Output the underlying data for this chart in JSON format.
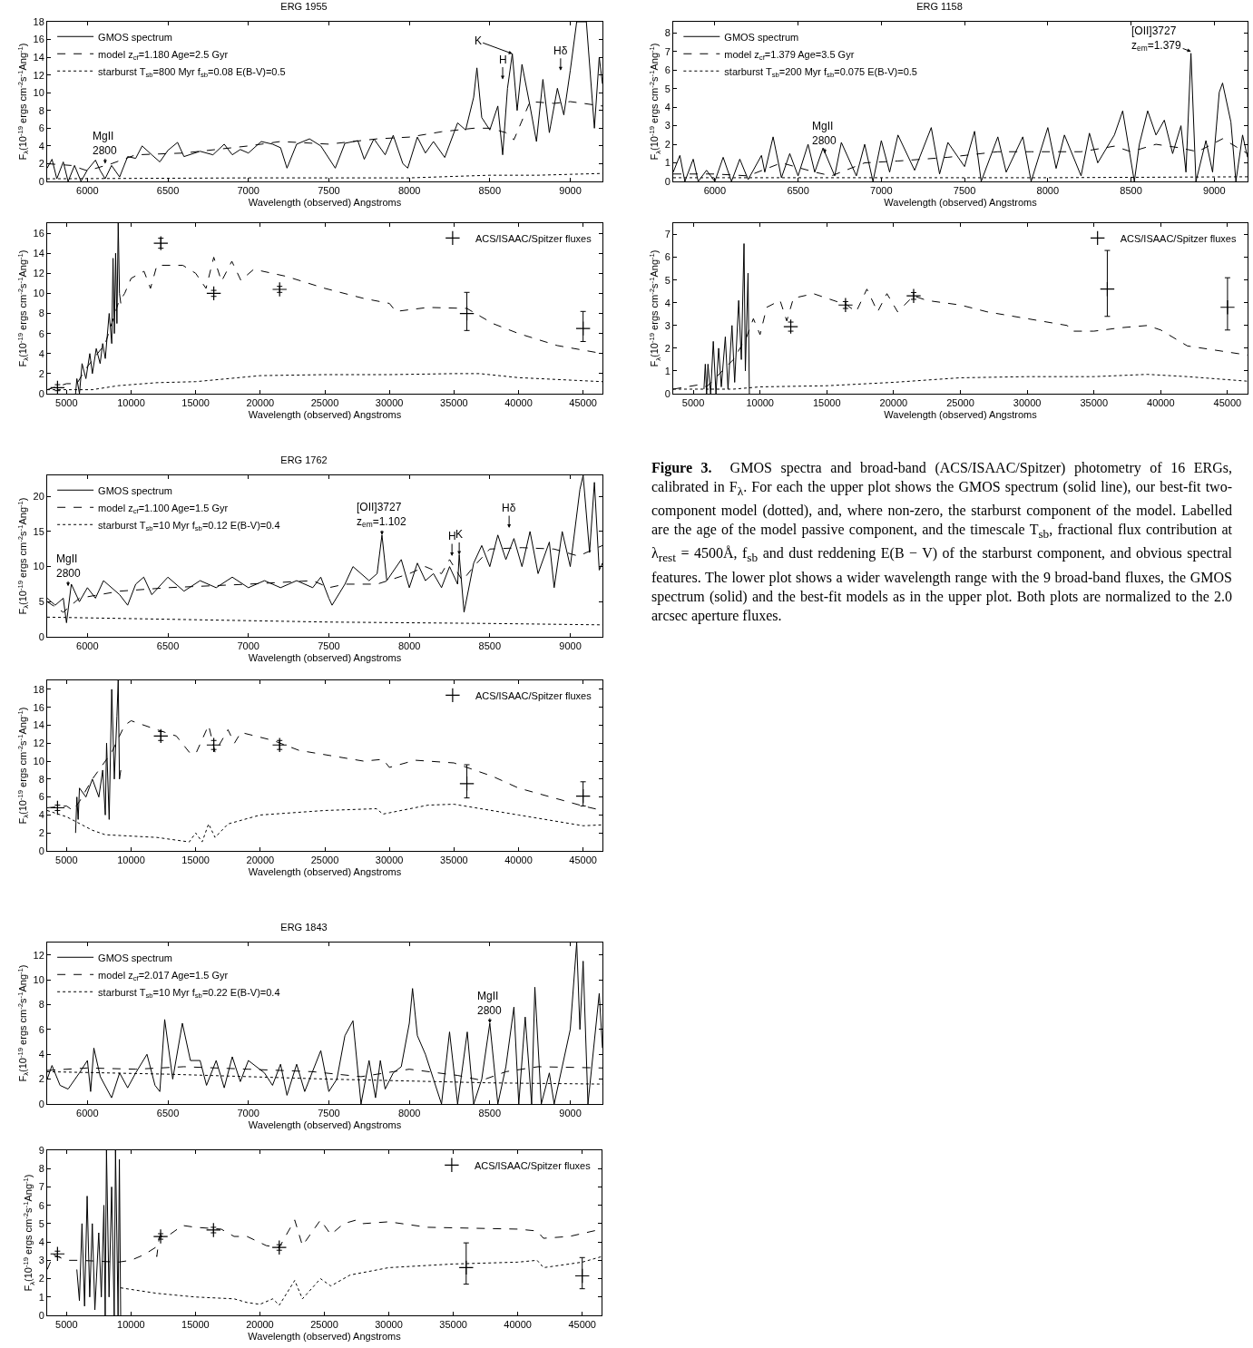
{
  "chart_data": [
    {
      "type": "line",
      "title": "ERG 1955",
      "xlabel": "Wavelength (observed) Angstroms",
      "ylabel": "F$_{λ}$(10$^{-19}$ ergs cm$^{-2}$s$^{-1}$Ang$^{-1}$)",
      "xlim": [
        5750,
        9200
      ],
      "xticks": [
        6000,
        6500,
        7000,
        7500,
        8000,
        8500,
        9000
      ],
      "ylim": [
        0,
        18
      ],
      "yticks": [
        0,
        2,
        4,
        6,
        8,
        10,
        12,
        14,
        16,
        18
      ],
      "legend": "top left",
      "annotations": [
        {
          "text": "MgII\n2800",
          "x": 6110,
          "y": 2
        },
        {
          "text": "H",
          "x": 8580,
          "y": 11.5
        },
        {
          "text": "K",
          "x": 8640,
          "y": 14.4
        },
        {
          "text": "Hδ",
          "x": 8940,
          "y": 12.5
        }
      ],
      "series": [
        {
          "name": "GMOS spectrum",
          "type": "line",
          "color": "#000000",
          "line_style": "solid",
          "x": [
            5750,
            5780,
            5810,
            5850,
            5880,
            5920,
            5960,
            6000,
            6050,
            6080,
            6110,
            6150,
            6200,
            6250,
            6300,
            6340,
            6400,
            6450,
            6500,
            6560,
            6600,
            6700,
            6780,
            6850,
            6900,
            6950,
            7000,
            7080,
            7150,
            7200,
            7240,
            7300,
            7380,
            7450,
            7540,
            7600,
            7680,
            7720,
            7780,
            7850,
            7900,
            7960,
            7990,
            8050,
            8100,
            8150,
            8220,
            8300,
            8350,
            8400,
            8420,
            8450,
            8500,
            8550,
            8580,
            8610,
            8640,
            8670,
            8700,
            8750,
            8790,
            8830,
            8870,
            8920,
            8960,
            9000,
            9040,
            9100,
            9150,
            9180,
            9200
          ],
          "values": [
            1.5,
            2.5,
            0.3,
            2.2,
            0,
            1.8,
            0,
            1.3,
            2.4,
            1.2,
            0.3,
            1.8,
            0.5,
            2.8,
            2.6,
            4,
            3,
            2.2,
            3.5,
            4.4,
            2.8,
            3.4,
            3,
            4.2,
            3,
            3.6,
            3.2,
            4.5,
            4.2,
            3.8,
            1.5,
            4.2,
            4.8,
            4,
            1.5,
            4.3,
            4.6,
            2.5,
            4.8,
            3,
            5.2,
            2,
            1.5,
            5,
            3.2,
            4.5,
            2.7,
            6.6,
            5.8,
            9.5,
            12.8,
            7.2,
            5.8,
            8.5,
            3,
            10.5,
            14.4,
            8,
            13.2,
            8.5,
            4.5,
            11.5,
            5.5,
            10.5,
            7.5,
            12.5,
            18,
            18,
            6,
            14,
            11
          ]
        },
        {
          "name": "model z$_{cf}$=1.180 Age=2.5 Gyr",
          "type": "line",
          "color": "#000000",
          "line_style": "dashed",
          "x": [
            5750,
            5900,
            6000,
            6150,
            6300,
            6600,
            7000,
            7200,
            7500,
            7800,
            8000,
            8200,
            8400,
            8500,
            8600,
            8650,
            8750,
            8900,
            9000,
            9200
          ],
          "values": [
            2,
            1.8,
            1.2,
            2,
            3,
            3.2,
            4,
            4.5,
            4.2,
            4.8,
            5,
            5.6,
            6,
            6,
            5.5,
            4.7,
            9,
            8.8,
            9,
            8.5
          ]
        },
        {
          "name": "starburst T$_{sb}$=800 Myr f$_{sb}$=0.08 E(B-V)=0.5",
          "type": "line",
          "color": "#000000",
          "line_style": "dotted",
          "x": [
            5750,
            7000,
            8000,
            8500,
            8800,
            9000,
            9200
          ],
          "values": [
            0.3,
            0.4,
            0.4,
            0.7,
            0.7,
            0.8,
            0.9
          ]
        }
      ]
    },
    {
      "type": "line",
      "xlabel": "Wavelength (observed) Angstroms",
      "ylabel": "F$_{λ}$(10$^{-19}$ ergs cm$^{-2}$s$^{-1}$Ang$^{-1}$)",
      "xlim": [
        3500,
        46500
      ],
      "xticks": [
        5000,
        10000,
        15000,
        20000,
        25000,
        30000,
        35000,
        40000,
        45000
      ],
      "ylim": [
        0,
        17
      ],
      "yticks": [
        0,
        2,
        4,
        6,
        8,
        10,
        12,
        14,
        16
      ],
      "legend": "top right",
      "series": [
        {
          "type": "line",
          "color": "#000000",
          "line_style": "solid",
          "x": [
            5700,
            5800,
            6000,
            6200,
            6500,
            6800,
            7000,
            7300,
            7600,
            7800,
            8000,
            8300,
            8500,
            8600,
            8700,
            8800,
            8900,
            9000,
            9100,
            9200
          ],
          "values": [
            0,
            1.5,
            0,
            3,
            1.5,
            4,
            2,
            4.5,
            3,
            5,
            3.5,
            8,
            5,
            13.5,
            6,
            14,
            7,
            17,
            10,
            9
          ]
        },
        {
          "type": "line",
          "color": "#000000",
          "line_style": "dashed",
          "x": [
            3500,
            5000,
            5800,
            6500,
            8000,
            9000,
            9500,
            10000,
            11000,
            11500,
            12000,
            14000,
            15000,
            15800,
            16400,
            17000,
            17800,
            18500,
            19500,
            22000,
            25000,
            28000,
            30000,
            30500,
            33000,
            36000,
            38000,
            40000,
            43000,
            46500
          ],
          "values": [
            0.4,
            1,
            1,
            2.5,
            5,
            9,
            10,
            11.5,
            12.2,
            10.5,
            12.8,
            12.8,
            12,
            10.5,
            13.6,
            11.2,
            13.2,
            11.3,
            12.4,
            11.7,
            10.5,
            9.5,
            9,
            8.2,
            8.6,
            8.5,
            7,
            6,
            4.8,
            4
          ]
        },
        {
          "type": "line",
          "color": "#000000",
          "line_style": "dotted",
          "x": [
            3500,
            7000,
            9000,
            12000,
            15000,
            20000,
            25000,
            30000,
            35000,
            37000,
            40000,
            46500
          ],
          "values": [
            0.4,
            0.4,
            0.8,
            1.1,
            1.2,
            1.8,
            1.9,
            1.9,
            2,
            2,
            1.6,
            1.2
          ]
        },
        {
          "name": "ACS/ISAAC/Spitzer fluxes",
          "type": "scatter",
          "marker": "cross",
          "color": "#000000",
          "x": [
            4300,
            12300,
            16400,
            21500,
            36000,
            45000
          ],
          "values": [
            0.6,
            15,
            10,
            10.4,
            8,
            6.5
          ],
          "errors": [
            0.3,
            0.5,
            0.3,
            0.3,
            [
              6.3,
              10.1
            ],
            [
              5.2,
              8.2
            ]
          ]
        }
      ]
    },
    {
      "type": "line",
      "title": "ERG 1158",
      "xlabel": "Wavelength (observed) Angstroms",
      "ylabel": "F$_{λ}$(10$^{-19}$ ergs cm$^{-2}$s$^{-1}$Ang$^{-1}$)",
      "xlim": [
        5750,
        9200
      ],
      "xticks": [
        6000,
        6500,
        7000,
        7500,
        8000,
        8500,
        9000
      ],
      "ylim": [
        0,
        8.6
      ],
      "yticks": [
        0,
        1,
        2,
        3,
        4,
        5,
        6,
        7,
        8
      ],
      "legend": "top left",
      "annotations": [
        {
          "text": "MgII\n2800",
          "x": 6660,
          "y": 1.5
        },
        {
          "text": "[OII]3727\nz$_{em}$=1.379",
          "x": 8860,
          "y": 7
        }
      ],
      "series": [
        {
          "name": "GMOS spectrum",
          "type": "line",
          "color": "#000000",
          "line_style": "solid",
          "x": [
            5750,
            5790,
            5820,
            5870,
            5900,
            5950,
            6000,
            6050,
            6100,
            6150,
            6200,
            6280,
            6300,
            6350,
            6400,
            6450,
            6500,
            6560,
            6600,
            6650,
            6720,
            6760,
            6850,
            6900,
            6950,
            7000,
            7050,
            7100,
            7200,
            7300,
            7350,
            7400,
            7500,
            7560,
            7600,
            7700,
            7750,
            7850,
            7900,
            8000,
            8050,
            8100,
            8200,
            8250,
            8300,
            8400,
            8450,
            8520,
            8550,
            8600,
            8650,
            8700,
            8750,
            8800,
            8830,
            8860,
            8890,
            8950,
            8990,
            9030,
            9050,
            9100,
            9130,
            9170,
            9200
          ],
          "values": [
            0.5,
            1.4,
            0,
            1.2,
            0,
            0.6,
            0,
            1.3,
            0,
            1.2,
            0.1,
            1.4,
            0.5,
            2.4,
            0.2,
            1.5,
            0.3,
            2,
            0.5,
            1.8,
            0.3,
            2.1,
            0.3,
            2,
            0,
            2.2,
            0.5,
            2.5,
            0.6,
            2.9,
            0.4,
            2.1,
            0.8,
            2.7,
            0,
            2.4,
            0.5,
            2.4,
            0,
            2.9,
            0.7,
            2.5,
            0.3,
            2.6,
            1,
            2.5,
            3.8,
            0,
            2,
            3.8,
            2.5,
            3.3,
            1.5,
            3,
            0.5,
            6.9,
            0,
            2.2,
            0.5,
            4.8,
            5.3,
            3.2,
            0,
            2.5,
            1.3
          ]
        },
        {
          "name": "model z$_{cf}$=1.379 Age=3.5 Gyr",
          "type": "line",
          "color": "#000000",
          "line_style": "dashed",
          "x": [
            5750,
            6000,
            6200,
            6400,
            6600,
            6700,
            6900,
            7100,
            7400,
            7700,
            7900,
            8200,
            8400,
            8500,
            8650,
            8800,
            8900,
            9050,
            9200
          ],
          "values": [
            0.4,
            0.4,
            0.3,
            1,
            0.5,
            0.3,
            1,
            1.1,
            1.3,
            1.6,
            1.6,
            1.6,
            1.9,
            1.6,
            2,
            1.8,
            1.6,
            2.3,
            1.5
          ]
        },
        {
          "name": "starburst T$_{sb}$=200 Myr f$_{sb}$=0.075 E(B-V)=0.5",
          "type": "line",
          "color": "#000000",
          "line_style": "dotted",
          "x": [
            5750,
            8000,
            9200
          ],
          "values": [
            0.2,
            0.2,
            0.25
          ]
        }
      ]
    },
    {
      "type": "line",
      "xlabel": "Wavelength (observed) Angstroms",
      "ylabel": "F$_{λ}$(10$^{-19}$ ergs cm$^{-2}$s$^{-1}$Ang$^{-1}$)",
      "xlim": [
        3500,
        46500
      ],
      "xticks": [
        5000,
        10000,
        15000,
        20000,
        25000,
        30000,
        35000,
        40000,
        45000
      ],
      "ylim": [
        0,
        7.5
      ],
      "yticks": [
        0,
        1,
        2,
        3,
        4,
        5,
        6,
        7
      ],
      "legend": "top right",
      "series": [
        {
          "type": "line",
          "color": "#000000",
          "line_style": "solid",
          "x": [
            5800,
            5900,
            6000,
            6100,
            6300,
            6500,
            6700,
            6900,
            7100,
            7400,
            7600,
            7900,
            8100,
            8400,
            8600,
            8800,
            8900,
            9100,
            9200
          ],
          "values": [
            0.2,
            1.3,
            0,
            1.3,
            0,
            2.3,
            0,
            2,
            0.3,
            2.5,
            0.2,
            3,
            0.5,
            4.1,
            1.5,
            6.6,
            1,
            5.3,
            0
          ]
        },
        {
          "type": "line",
          "color": "#000000",
          "line_style": "dashed",
          "x": [
            3500,
            5500,
            6000,
            8000,
            9000,
            9500,
            10000,
            10500,
            11500,
            12000,
            12500,
            14000,
            15000,
            16500,
            17200,
            18000,
            18800,
            19500,
            20300,
            21500,
            22500,
            25000,
            27000,
            30000,
            33000,
            33300,
            35000,
            37000,
            39000,
            40000,
            42000,
            46500
          ],
          "values": [
            0.2,
            0.4,
            0.3,
            1.5,
            2.5,
            3.3,
            2.6,
            3.8,
            4.1,
            3.2,
            4.2,
            4.4,
            4.2,
            3.9,
            3.6,
            4.6,
            3.6,
            4.4,
            3.6,
            4.3,
            4.1,
            3.9,
            3.6,
            3.3,
            3,
            2.75,
            2.75,
            2.9,
            3,
            2.8,
            2.1,
            1.7
          ]
        },
        {
          "type": "line",
          "color": "#000000",
          "line_style": "dotted",
          "x": [
            3500,
            8000,
            10000,
            15000,
            20000,
            25000,
            30000,
            35000,
            39000,
            42000,
            46500
          ],
          "values": [
            0.2,
            0.2,
            0.3,
            0.35,
            0.5,
            0.7,
            0.75,
            0.75,
            0.85,
            0.75,
            0.55
          ]
        },
        {
          "name": "ACS/ISAAC/Spitzer fluxes",
          "type": "scatter",
          "marker": "cross",
          "color": "#000000",
          "x": [
            12300,
            16400,
            21500,
            36000,
            45000
          ],
          "values": [
            2.95,
            3.9,
            4.3,
            4.6,
            3.8
          ],
          "errors": [
            0.2,
            0.15,
            0.15,
            [
              3.4,
              6.3
            ],
            [
              2.8,
              5.1
            ]
          ]
        }
      ]
    },
    {
      "type": "line",
      "title": "ERG 1762",
      "xlabel": "Wavelength (observed) Angstroms",
      "ylabel": "F$_{λ}$(10$^{-19}$ ergs cm$^{-2}$s$^{-1}$Ang$^{-1}$)",
      "xlim": [
        5750,
        9200
      ],
      "xticks": [
        6000,
        6500,
        7000,
        7500,
        8000,
        8500,
        9000
      ],
      "ylim": [
        0,
        23
      ],
      "yticks": [
        0,
        5,
        10,
        15,
        20
      ],
      "legend": "top left",
      "annotations": [
        {
          "text": "MgII\n2800",
          "x": 5880,
          "y": 7.2
        },
        {
          "text": "[OII]3727\nz$_{em}$=1.102",
          "x": 7830,
          "y": 14.5
        },
        {
          "text": "H",
          "x": 8265,
          "y": 11.5
        },
        {
          "text": "K",
          "x": 8310,
          "y": 11.7
        },
        {
          "text": "Hδ",
          "x": 8620,
          "y": 15.5
        }
      ],
      "series": [
        {
          "name": "GMOS spectrum",
          "type": "line",
          "color": "#000000",
          "line_style": "solid",
          "x": [
            5750,
            5800,
            5850,
            5870,
            5900,
            5950,
            6000,
            6050,
            6100,
            6200,
            6250,
            6300,
            6350,
            6400,
            6500,
            6600,
            6700,
            6800,
            6900,
            7000,
            7100,
            7200,
            7300,
            7400,
            7450,
            7500,
            7520,
            7600,
            7650,
            7700,
            7750,
            7800,
            7830,
            7860,
            7950,
            8000,
            8050,
            8100,
            8150,
            8200,
            8250,
            8300,
            8310,
            8340,
            8400,
            8450,
            8500,
            8550,
            8600,
            8650,
            8700,
            8750,
            8800,
            8870,
            8900,
            8950,
            9000,
            9060,
            9080,
            9120,
            9150,
            9180,
            9200
          ],
          "values": [
            5.5,
            4.5,
            5.5,
            2,
            7.5,
            5,
            7,
            5.5,
            8,
            6,
            4.5,
            7.5,
            8.5,
            6,
            8.5,
            6.5,
            8,
            7,
            8.5,
            7,
            8,
            7,
            8,
            7,
            8.5,
            5.5,
            4.5,
            7.5,
            10,
            9,
            8,
            9,
            14.5,
            8,
            11,
            7,
            10.5,
            8,
            9,
            7,
            10,
            7.5,
            11.7,
            3.5,
            10.5,
            13,
            10,
            14.5,
            11,
            14,
            10,
            15,
            9,
            13.5,
            7,
            15,
            10,
            21,
            23,
            12,
            22,
            9.5,
            10.5
          ]
        },
        {
          "name": "model z$_{cf}$=1.100 Age=1.5 Gyr",
          "type": "line",
          "color": "#000000",
          "line_style": "dashed",
          "x": [
            5750,
            5850,
            5950,
            6200,
            6500,
            7000,
            7400,
            7500,
            7600,
            7800,
            8000,
            8100,
            8200,
            8250,
            8330,
            8400,
            8500,
            8700,
            8900,
            9050,
            9200
          ],
          "values": [
            5,
            3.5,
            5.5,
            6.5,
            7,
            7.5,
            8,
            7,
            7.5,
            7.5,
            9,
            10,
            9,
            11,
            8,
            10,
            12.5,
            12.7,
            12.5,
            11.5,
            13
          ]
        },
        {
          "name": "starburst T$_{sb}$=10 Myr f$_{sb}$=0.12 E(B-V)=0.4",
          "type": "line",
          "color": "#000000",
          "line_style": "dotted",
          "x": [
            5750,
            6500,
            7500,
            8500,
            9200
          ],
          "values": [
            2.8,
            2.5,
            2.1,
            1.9,
            1.7
          ]
        }
      ]
    },
    {
      "type": "line",
      "xlabel": "Wavelength (observed) Angstroms",
      "ylabel": "F$_{λ}$(10$^{-19}$ ergs cm$^{-2}$s$^{-1}$Ang$^{-1}$)",
      "xlim": [
        3500,
        46500
      ],
      "xticks": [
        5000,
        10000,
        15000,
        20000,
        25000,
        30000,
        35000,
        40000,
        45000
      ],
      "ylim": [
        0,
        19
      ],
      "yticks": [
        0,
        2,
        4,
        6,
        8,
        10,
        12,
        14,
        16,
        18
      ],
      "legend": "top right",
      "series": [
        {
          "type": "line",
          "color": "#000000",
          "line_style": "solid",
          "x": [
            5700,
            5800,
            5900,
            6000,
            6500,
            7000,
            7500,
            7800,
            8000,
            8100,
            8300,
            8500,
            8700,
            8900,
            9000,
            9100,
            9200
          ],
          "values": [
            2,
            6,
            3.5,
            7,
            6,
            8,
            6,
            9,
            4,
            12,
            3.5,
            18,
            8,
            15,
            19,
            8,
            9
          ]
        },
        {
          "type": "line",
          "color": "#000000",
          "line_style": "dashed",
          "x": [
            3500,
            5000,
            5500,
            6000,
            7000,
            8500,
            9500,
            10000,
            12000,
            13500,
            14500,
            15000,
            16000,
            16500,
            17500,
            18000,
            18500,
            21000,
            23000,
            28000,
            29500,
            30000,
            32000,
            35000,
            38000,
            40000,
            45000,
            46500
          ],
          "values": [
            4.8,
            5,
            4.5,
            5.5,
            8,
            11,
            14,
            14.5,
            13.5,
            12.8,
            11,
            10.8,
            14,
            11,
            13.5,
            12,
            13.2,
            12.3,
            11.2,
            10,
            10.2,
            9.3,
            10.1,
            9.8,
            8.3,
            7,
            5,
            4.5
          ]
        },
        {
          "type": "line",
          "color": "#000000",
          "line_style": "dotted",
          "x": [
            3500,
            5000,
            7000,
            8000,
            12000,
            14500,
            15000,
            15500,
            16000,
            16500,
            17500,
            20000,
            25000,
            29000,
            29500,
            33000,
            35000,
            40000,
            45000,
            46500
          ],
          "values": [
            4.5,
            3.8,
            2.3,
            1.8,
            1.5,
            1,
            2,
            1,
            3,
            1.5,
            3,
            4,
            4.5,
            4.7,
            4.1,
            5.1,
            5.2,
            4,
            2.8,
            2.9
          ]
        },
        {
          "name": "ACS/ISAAC/Spitzer fluxes",
          "type": "scatter",
          "marker": "cross",
          "color": "#000000",
          "x": [
            4300,
            12300,
            16400,
            21500,
            36000,
            45000
          ],
          "values": [
            4.8,
            12.8,
            11.8,
            11.8,
            7.5,
            6.1
          ],
          "errors": [
            0.3,
            0.5,
            0.5,
            0.5,
            [
              5.9,
              9.6
            ],
            [
              5,
              7.7
            ]
          ]
        }
      ]
    },
    {
      "type": "line",
      "title": "ERG 1843",
      "xlabel": "Wavelength (observed) Angstroms",
      "ylabel": "F$_{λ}$(10$^{-19}$ ergs cm$^{-2}$s$^{-1}$Ang$^{-1}$)",
      "xlim": [
        5750,
        9200
      ],
      "xticks": [
        6000,
        6500,
        7000,
        7500,
        8000,
        8500,
        9000
      ],
      "ylim": [
        0,
        13
      ],
      "yticks": [
        0,
        2,
        4,
        6,
        8,
        10,
        12
      ],
      "legend": "top left",
      "annotations": [
        {
          "text": "MgII\n2800",
          "x": 8500,
          "y": 6.5
        }
      ],
      "series": [
        {
          "name": "GMOS spectrum",
          "type": "line",
          "color": "#000000",
          "line_style": "solid",
          "x": [
            5750,
            5780,
            5830,
            5880,
            5950,
            6000,
            6020,
            6040,
            6080,
            6150,
            6200,
            6250,
            6300,
            6370,
            6420,
            6450,
            6480,
            6530,
            6590,
            6640,
            6700,
            6740,
            6800,
            6850,
            6900,
            6950,
            7000,
            7100,
            7150,
            7200,
            7240,
            7300,
            7350,
            7450,
            7500,
            7550,
            7600,
            7650,
            7700,
            7750,
            7790,
            7820,
            7850,
            7900,
            7950,
            8000,
            8020,
            8050,
            8100,
            8150,
            8200,
            8250,
            8300,
            8360,
            8400,
            8450,
            8500,
            8550,
            8600,
            8650,
            8680,
            8720,
            8760,
            8780,
            8820,
            8870,
            8900,
            8950,
            9000,
            9040,
            9060,
            9080,
            9110,
            9180,
            9200
          ],
          "values": [
            2,
            3.1,
            1.5,
            1.2,
            2.5,
            3.5,
            1,
            4.5,
            2.2,
            0.5,
            2.5,
            1.3,
            2.5,
            4,
            1.5,
            1,
            6.8,
            2,
            6.5,
            3.5,
            3.5,
            1.5,
            3.5,
            1.3,
            3.8,
            1.8,
            3.5,
            2.5,
            1.5,
            3.2,
            0.7,
            3.2,
            1,
            4.3,
            1,
            2,
            5.5,
            6.7,
            0,
            3.5,
            0.5,
            3.5,
            1.2,
            2.5,
            3,
            6.5,
            9.3,
            5.5,
            4,
            2,
            0,
            5.8,
            0,
            5.8,
            0,
            2,
            6.5,
            0,
            3,
            7.8,
            0,
            7,
            0,
            9.4,
            0,
            2.5,
            0,
            3,
            6,
            13,
            6,
            11.5,
            0,
            8.9,
            4.5
          ]
        },
        {
          "name": "model z$_{cf}$=2.017 Age=1.5 Gyr",
          "type": "line",
          "color": "#000000",
          "line_style": "dashed",
          "x": [
            5750,
            6000,
            6300,
            6600,
            7000,
            7400,
            7700,
            7900,
            8000,
            8300,
            8450,
            8600,
            8800,
            9200
          ],
          "values": [
            2.7,
            2.9,
            2.8,
            3,
            2.8,
            2.6,
            2.2,
            2.6,
            2.8,
            2.3,
            1.9,
            2.6,
            3,
            2.9
          ]
        },
        {
          "name": "starburst T$_{sb}$=10 Myr f$_{sb}$=0.22 E(B-V)=0.4",
          "type": "line",
          "color": "#000000",
          "line_style": "dotted",
          "x": [
            5750,
            6500,
            7500,
            8500,
            9200
          ],
          "values": [
            2.6,
            2.4,
            2,
            1.7,
            1.6
          ]
        }
      ]
    },
    {
      "type": "line",
      "xlabel": "Wavelength (observed) Angstroms",
      "ylabel": "F$_{λ}$(10$^{-19}$ ergs cm$^{-2}$s$^{-1}$Ang$^{-1}$)",
      "xlim": [
        3500,
        46500
      ],
      "xticks": [
        5000,
        10000,
        15000,
        20000,
        25000,
        30000,
        35000,
        40000,
        45000
      ],
      "ylim": [
        0,
        9
      ],
      "yticks": [
        0,
        1,
        2,
        3,
        4,
        5,
        6,
        7,
        8,
        9
      ],
      "legend": "top right",
      "series": [
        {
          "type": "line",
          "color": "#000000",
          "line_style": "solid",
          "x": [
            5800,
            6000,
            6200,
            6400,
            6600,
            6800,
            7000,
            7200,
            7500,
            7700,
            7900,
            8000,
            8100,
            8300,
            8500,
            8700,
            8800,
            9000,
            9100,
            9200
          ],
          "values": [
            2.5,
            0.8,
            5,
            0.5,
            6.5,
            1,
            5,
            0.3,
            4.5,
            1,
            6,
            0,
            9,
            1,
            7,
            0,
            9,
            0,
            8.5,
            0
          ]
        },
        {
          "type": "line",
          "color": "#000000",
          "line_style": "dashed",
          "x": [
            3500,
            4000,
            5000,
            6000,
            9000,
            10000,
            11000,
            11900,
            12000,
            12200,
            13000,
            14000,
            15000,
            17000,
            18000,
            19000,
            20500,
            21500,
            22700,
            23300,
            24700,
            25500,
            26500,
            27500,
            28000,
            30000,
            33000,
            40000,
            41500,
            42000,
            44000,
            46500
          ],
          "values": [
            2.5,
            3.3,
            3,
            3,
            2.9,
            3,
            3.3,
            3.7,
            3.2,
            4.3,
            4.4,
            4.9,
            4.8,
            4.7,
            4.3,
            4.3,
            3.8,
            3.7,
            5.2,
            3.8,
            5.2,
            4.4,
            5,
            5.2,
            5,
            5.1,
            4.8,
            4.7,
            4.6,
            4.2,
            4.3,
            4.7
          ]
        },
        {
          "type": "line",
          "color": "#000000",
          "line_style": "dotted",
          "x": [
            9200,
            12000,
            15000,
            18000,
            19000,
            20000,
            21000,
            21500,
            22700,
            23300,
            24700,
            25500,
            27000,
            30000,
            35000,
            40000,
            41500,
            42000,
            45000,
            46500
          ],
          "values": [
            1.5,
            1.2,
            1,
            0.9,
            0.7,
            0.6,
            0.9,
            0.55,
            1.9,
            0.9,
            2,
            1.6,
            2.2,
            2.6,
            2.8,
            2.9,
            3,
            2.6,
            2.9,
            3.2
          ]
        },
        {
          "name": "ACS/ISAAC/Spitzer fluxes",
          "type": "scatter",
          "marker": "cross",
          "color": "#000000",
          "x": [
            4300,
            12300,
            16400,
            21500,
            36000,
            45000
          ],
          "values": [
            3.35,
            4.3,
            4.65,
            3.7,
            2.6,
            2.15
          ],
          "errors": [
            0.15,
            0.15,
            0.15,
            0.15,
            [
              1.7,
              3.95
            ],
            [
              1.45,
              3.15
            ]
          ]
        }
      ]
    },
    {
      "type": "other",
      "title": "Figure 3.",
      "annotations": [
        "GMOS spectra and broad-band (ACS/ISAAC/Spitzer) photometry of 16 ERGs, calibrated in F$_{λ}$. For each the upper plot shows the GMOS spectrum (solid line), our best-fit two-component model (dotted), and, where non-zero, the starburst component of the model. Labelled are the age of the model passive component, and the timescale T$_{sb}$, fractional flux contribution at λ$_{rest}$ = 4500Å, f$_{sb}$ and dust reddening E(B − V) of the starburst component, and obvious spectral features. The lower plot shows a wider wavelength range with the 9 broad-band fluxes, the GMOS spectrum (solid) and the best-fit models as in the upper plot. Both plots are normalized to the 2.0 arcsec aperture fluxes."
      ]
    }
  ]
}
